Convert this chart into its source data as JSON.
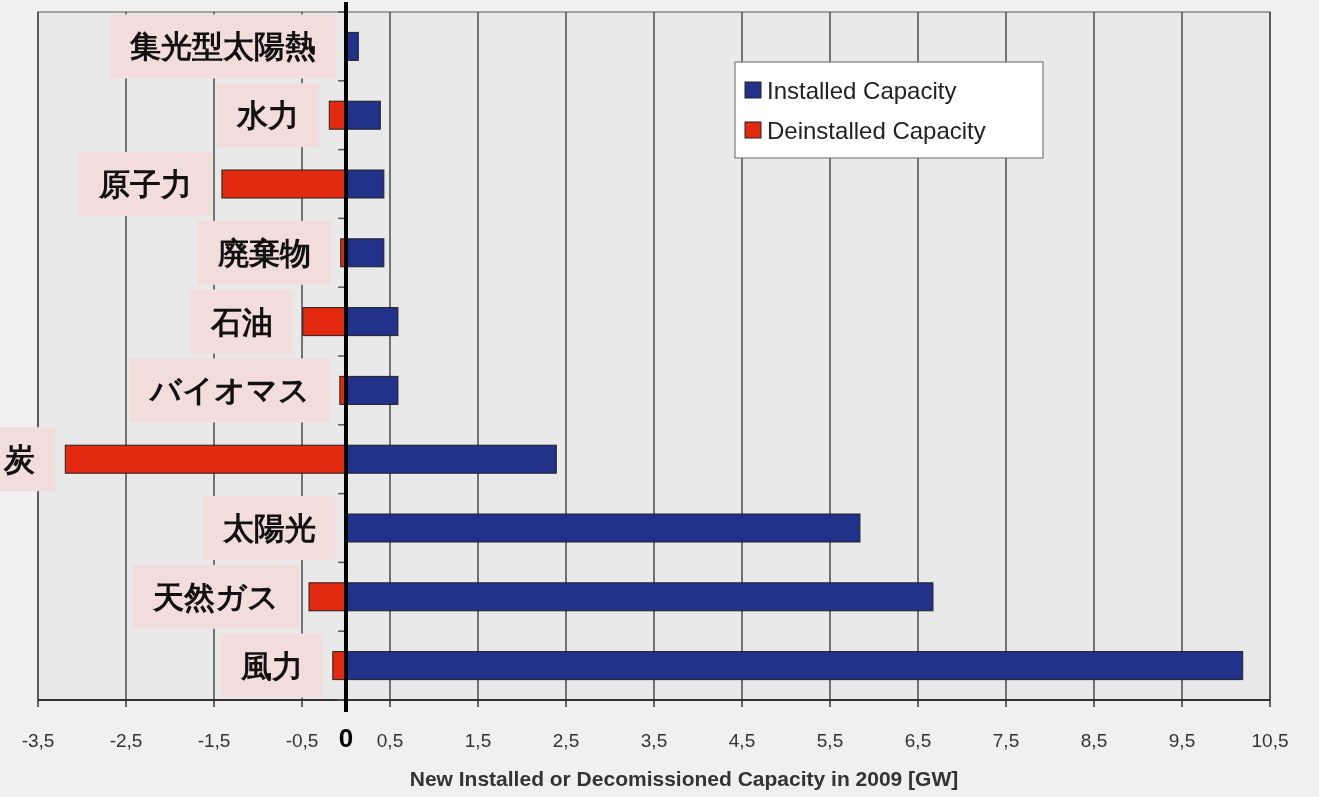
{
  "chart_data": {
    "type": "bar",
    "orientation": "horizontal",
    "stacked": true,
    "categories": [
      "集光型太陽熱",
      "水力",
      "原子力",
      "廃棄物",
      "石油",
      "バイオマス",
      "炭",
      "太陽光",
      "天然ガス",
      "風力"
    ],
    "series": [
      {
        "name": "Installed Capacity",
        "color": "#22318a",
        "values": [
          0.14,
          0.39,
          0.43,
          0.43,
          0.59,
          0.59,
          2.39,
          5.84,
          6.67,
          10.19
        ]
      },
      {
        "name": "Deinstalled Capacity",
        "color": "#e3290f",
        "values": [
          null,
          -0.19,
          -1.41,
          -0.06,
          -0.49,
          -0.07,
          -3.19,
          null,
          -0.42,
          -0.15
        ]
      }
    ],
    "xlabel": "New Installed or Decomissioned Capacity in 2009 [GW]",
    "xlim": [
      -3.5,
      10.5
    ],
    "xticks": [
      {
        "value": -3.5,
        "label": "-3,5"
      },
      {
        "value": -2.5,
        "label": "-2,5"
      },
      {
        "value": -1.5,
        "label": "-1,5"
      },
      {
        "value": -0.5,
        "label": "-0,5"
      },
      0,
      {
        "value": 0.5,
        "label": "0,5"
      },
      {
        "value": 1.5,
        "label": "1,5"
      },
      {
        "value": 2.5,
        "label": "2,5"
      },
      {
        "value": 3.5,
        "label": "3,5"
      },
      {
        "value": 4.5,
        "label": "4,5"
      },
      {
        "value": 5.5,
        "label": "5,5"
      },
      {
        "value": 6.5,
        "label": "6,5"
      },
      {
        "value": 7.5,
        "label": "7,5"
      },
      {
        "value": 8.5,
        "label": "8,5"
      },
      {
        "value": 9.5,
        "label": "9,5"
      },
      {
        "value": 10.5,
        "label": "10,5"
      }
    ],
    "grid": "x",
    "legend": "top right"
  }
}
